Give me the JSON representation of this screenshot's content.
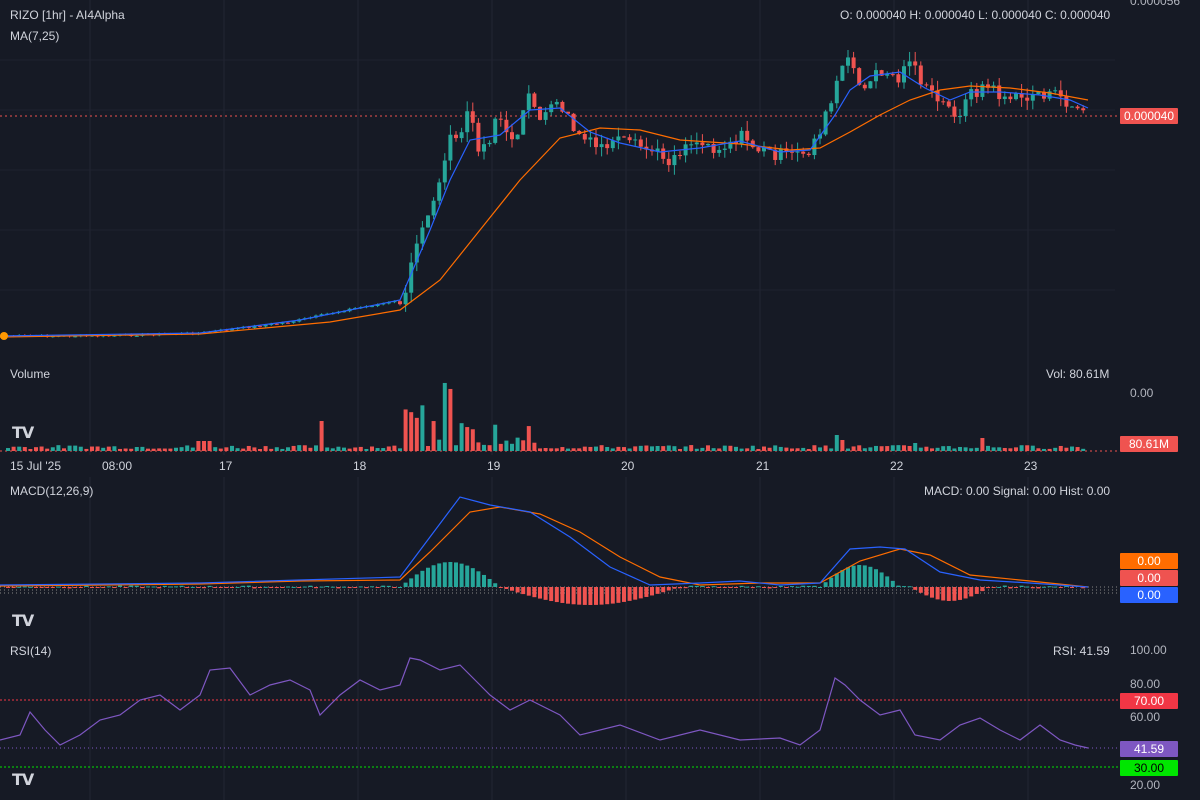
{
  "header": {
    "title": "RIZO [1hr] - AI4Alpha",
    "ma_label": "MA(7,25)",
    "ohlc": "O: 0.000040 H: 0.000040 L: 0.000040 C: 0.000040",
    "price_top_tick": "0.000056",
    "last_price": "0.000040"
  },
  "volume": {
    "label": "Volume",
    "readout": "Vol: 80.61M",
    "zero_tick": "0.00",
    "last_badge": "80.61M"
  },
  "time_axis": [
    "15 Jul '25",
    "08:00",
    "17",
    "18",
    "19",
    "20",
    "21",
    "22",
    "23"
  ],
  "macd": {
    "label": "MACD(12,26,9)",
    "readout": "MACD: 0.00 Signal: 0.00 Hist: 0.00",
    "badges": [
      "0.00",
      "0.00",
      "0.00"
    ]
  },
  "rsi": {
    "label": "RSI(14)",
    "readout": "RSI: 41.59",
    "ticks": [
      "100.00",
      "80.00",
      "60.00",
      "20.00"
    ],
    "badges": {
      "overbought": "70.00",
      "current": "41.59",
      "oversold": "30.00"
    }
  },
  "logo_text": "TV",
  "colors": {
    "background": "#161a25",
    "up": "#26a69a",
    "down": "#ef5350",
    "ma_fast": "#2962ff",
    "ma_slow": "#ff6d00",
    "rsi_line": "#7e57c2",
    "overbought": "#f23645",
    "oversold": "#00e600"
  }
}
